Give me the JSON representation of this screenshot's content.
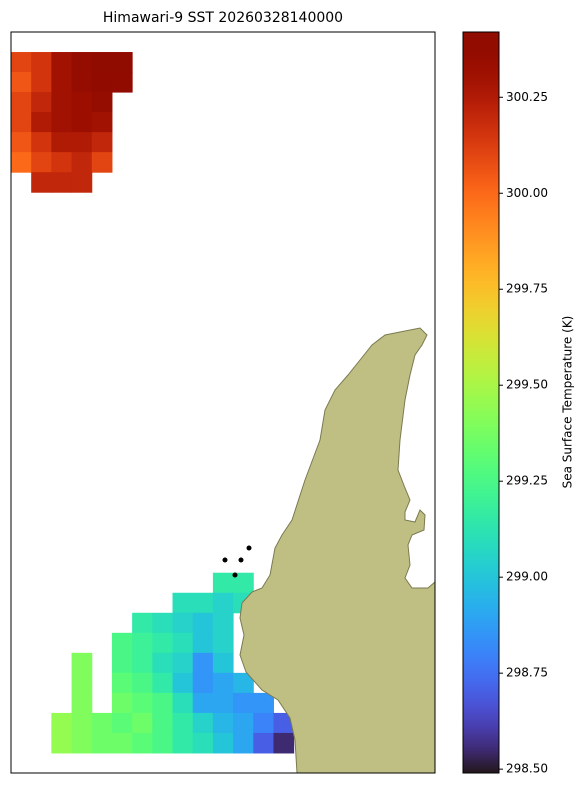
{
  "chart_data": {
    "type": "heatmap",
    "title": "Himawari-9 SST 20260328140000",
    "colormap": "turbo",
    "colorbar": {
      "label": "Sea Surface Temperature (K)",
      "lim": [
        298.49,
        300.42
      ],
      "ticks": [
        {
          "value": 298.5,
          "label": "298.50"
        },
        298.75,
        {
          "value": 299,
          "label": "299.00"
        },
        299.25,
        {
          "value": 299.5,
          "label": "299.50"
        },
        299.75,
        {
          "value": 300,
          "label": "300.00"
        },
        300.25
      ]
    },
    "z": [
      [
        null,
        null,
        null,
        null,
        null,
        null,
        null,
        null,
        null,
        null,
        null,
        null,
        null,
        null,
        null,
        null,
        null,
        null,
        null,
        null,
        null
      ],
      [
        300.1,
        300.15,
        300.3,
        300.35,
        300.4,
        300.4,
        null,
        null,
        null,
        null,
        null,
        null,
        null,
        null,
        null,
        null,
        null,
        null,
        null,
        null,
        null
      ],
      [
        300.05,
        300.15,
        300.3,
        300.35,
        300.38,
        300.38,
        null,
        null,
        null,
        null,
        null,
        null,
        null,
        null,
        null,
        null,
        null,
        null,
        null,
        null,
        null
      ],
      [
        300.1,
        300.2,
        300.3,
        300.32,
        300.35,
        null,
        null,
        null,
        null,
        null,
        null,
        null,
        null,
        null,
        null,
        null,
        null,
        null,
        null,
        null,
        null
      ],
      [
        300.1,
        300.25,
        300.3,
        300.32,
        300.3,
        null,
        null,
        null,
        null,
        null,
        null,
        null,
        null,
        null,
        null,
        null,
        null,
        null,
        null,
        null,
        null
      ],
      [
        300.05,
        300.15,
        300.25,
        300.25,
        300.2,
        null,
        null,
        null,
        null,
        null,
        null,
        null,
        null,
        null,
        null,
        null,
        null,
        null,
        null,
        null,
        null
      ],
      [
        300.0,
        300.1,
        300.15,
        300.2,
        300.1,
        null,
        null,
        null,
        null,
        null,
        null,
        null,
        null,
        null,
        null,
        null,
        null,
        null,
        null,
        null,
        null
      ],
      [
        null,
        300.2,
        300.2,
        300.2,
        null,
        null,
        null,
        null,
        null,
        null,
        null,
        null,
        null,
        null,
        null,
        null,
        null,
        null,
        null,
        null,
        null
      ],
      [
        null,
        null,
        null,
        null,
        null,
        null,
        null,
        null,
        null,
        null,
        null,
        null,
        null,
        null,
        null,
        null,
        null,
        null,
        null,
        null,
        null
      ],
      [
        null,
        null,
        null,
        null,
        null,
        null,
        null,
        null,
        null,
        null,
        null,
        null,
        null,
        null,
        null,
        null,
        null,
        null,
        null,
        null,
        null
      ],
      [
        null,
        null,
        null,
        null,
        null,
        null,
        null,
        null,
        null,
        null,
        null,
        null,
        null,
        null,
        null,
        null,
        null,
        null,
        null,
        null,
        null
      ],
      [
        null,
        null,
        null,
        null,
        null,
        null,
        null,
        null,
        null,
        null,
        null,
        null,
        null,
        null,
        null,
        null,
        null,
        null,
        null,
        null,
        null
      ],
      [
        null,
        null,
        null,
        null,
        null,
        null,
        null,
        null,
        null,
        null,
        null,
        null,
        null,
        null,
        null,
        null,
        null,
        null,
        null,
        null,
        null
      ],
      [
        null,
        null,
        null,
        null,
        null,
        null,
        null,
        null,
        null,
        null,
        null,
        null,
        null,
        null,
        null,
        null,
        null,
        null,
        null,
        null,
        null
      ],
      [
        null,
        null,
        null,
        null,
        null,
        null,
        null,
        null,
        null,
        null,
        null,
        null,
        null,
        null,
        null,
        null,
        null,
        null,
        null,
        null,
        null
      ],
      [
        null,
        null,
        null,
        null,
        null,
        null,
        null,
        null,
        null,
        null,
        null,
        null,
        null,
        null,
        null,
        null,
        null,
        null,
        null,
        null,
        null
      ],
      [
        null,
        null,
        null,
        null,
        null,
        null,
        null,
        null,
        null,
        null,
        null,
        null,
        null,
        null,
        null,
        null,
        null,
        null,
        null,
        null,
        null
      ],
      [
        null,
        null,
        null,
        null,
        null,
        null,
        null,
        null,
        null,
        null,
        null,
        null,
        null,
        null,
        null,
        null,
        null,
        null,
        null,
        null,
        null
      ],
      [
        null,
        null,
        null,
        null,
        null,
        null,
        null,
        null,
        null,
        null,
        null,
        null,
        null,
        null,
        null,
        null,
        null,
        null,
        null,
        null,
        null
      ],
      [
        null,
        null,
        null,
        null,
        null,
        null,
        null,
        null,
        null,
        null,
        null,
        null,
        null,
        null,
        null,
        null,
        null,
        null,
        null,
        null,
        null
      ],
      [
        null,
        null,
        null,
        null,
        null,
        null,
        null,
        null,
        null,
        null,
        null,
        null,
        null,
        null,
        null,
        null,
        null,
        null,
        null,
        null,
        null
      ],
      [
        null,
        null,
        null,
        null,
        null,
        null,
        null,
        null,
        null,
        null,
        null,
        null,
        null,
        null,
        null,
        null,
        null,
        null,
        null,
        null,
        null
      ],
      [
        null,
        null,
        null,
        null,
        null,
        null,
        null,
        null,
        null,
        null,
        null,
        null,
        null,
        null,
        null,
        null,
        null,
        null,
        null,
        null,
        null
      ],
      [
        null,
        null,
        null,
        null,
        null,
        null,
        null,
        null,
        null,
        null,
        null,
        null,
        null,
        null,
        null,
        null,
        null,
        null,
        null,
        null,
        null
      ],
      [
        null,
        null,
        null,
        null,
        null,
        null,
        null,
        null,
        null,
        null,
        null,
        null,
        null,
        null,
        null,
        null,
        null,
        null,
        null,
        null,
        null
      ],
      [
        null,
        null,
        null,
        null,
        null,
        null,
        null,
        null,
        null,
        null,
        null,
        null,
        null,
        null,
        null,
        null,
        null,
        null,
        null,
        null,
        null
      ],
      [
        null,
        null,
        null,
        null,
        null,
        null,
        null,
        null,
        null,
        null,
        null,
        null,
        null,
        null,
        null,
        null,
        null,
        null,
        null,
        null,
        null
      ],
      [
        null,
        null,
        null,
        null,
        null,
        null,
        null,
        null,
        null,
        null,
        299.15,
        299.15,
        null,
        null,
        null,
        null,
        null,
        null,
        null,
        null,
        null
      ],
      [
        null,
        null,
        null,
        null,
        null,
        null,
        null,
        null,
        299.1,
        299.1,
        299.05,
        299.1,
        null,
        null,
        null,
        null,
        null,
        null,
        null,
        null,
        null
      ],
      [
        null,
        null,
        null,
        null,
        null,
        null,
        299.15,
        299.1,
        299.05,
        299.0,
        299.05,
        null,
        null,
        null,
        null,
        null,
        null,
        null,
        null,
        null,
        null
      ],
      [
        null,
        null,
        null,
        null,
        null,
        299.25,
        299.2,
        299.15,
        299.1,
        299.0,
        299.05,
        null,
        null,
        null,
        null,
        null,
        null,
        null,
        null,
        null,
        null
      ],
      [
        null,
        null,
        null,
        299.4,
        null,
        299.25,
        299.2,
        299.1,
        299.05,
        298.85,
        299.0,
        null,
        null,
        null,
        null,
        null,
        null,
        null,
        null,
        null,
        null
      ],
      [
        null,
        null,
        null,
        299.4,
        null,
        299.3,
        299.25,
        299.15,
        299.0,
        298.85,
        298.9,
        298.95,
        null,
        null,
        null,
        null,
        null,
        null,
        null,
        null,
        null
      ],
      [
        null,
        null,
        null,
        299.4,
        null,
        299.35,
        299.3,
        299.25,
        299.1,
        298.9,
        298.9,
        298.85,
        298.85,
        null,
        null,
        null,
        null,
        null,
        null,
        null,
        null
      ],
      [
        null,
        null,
        299.45,
        299.4,
        299.35,
        299.3,
        299.35,
        299.25,
        299.15,
        299.05,
        298.95,
        298.9,
        298.8,
        298.7,
        null,
        null,
        null,
        null,
        null,
        null,
        null
      ],
      [
        null,
        null,
        299.45,
        299.4,
        299.35,
        299.35,
        299.3,
        299.25,
        299.15,
        299.1,
        299.0,
        298.9,
        298.7,
        298.55,
        null,
        null,
        null,
        null,
        null,
        null,
        null
      ],
      [
        null,
        null,
        null,
        null,
        null,
        null,
        null,
        null,
        null,
        null,
        null,
        null,
        null,
        null,
        null,
        null,
        null,
        null,
        null,
        null,
        null
      ]
    ]
  }
}
